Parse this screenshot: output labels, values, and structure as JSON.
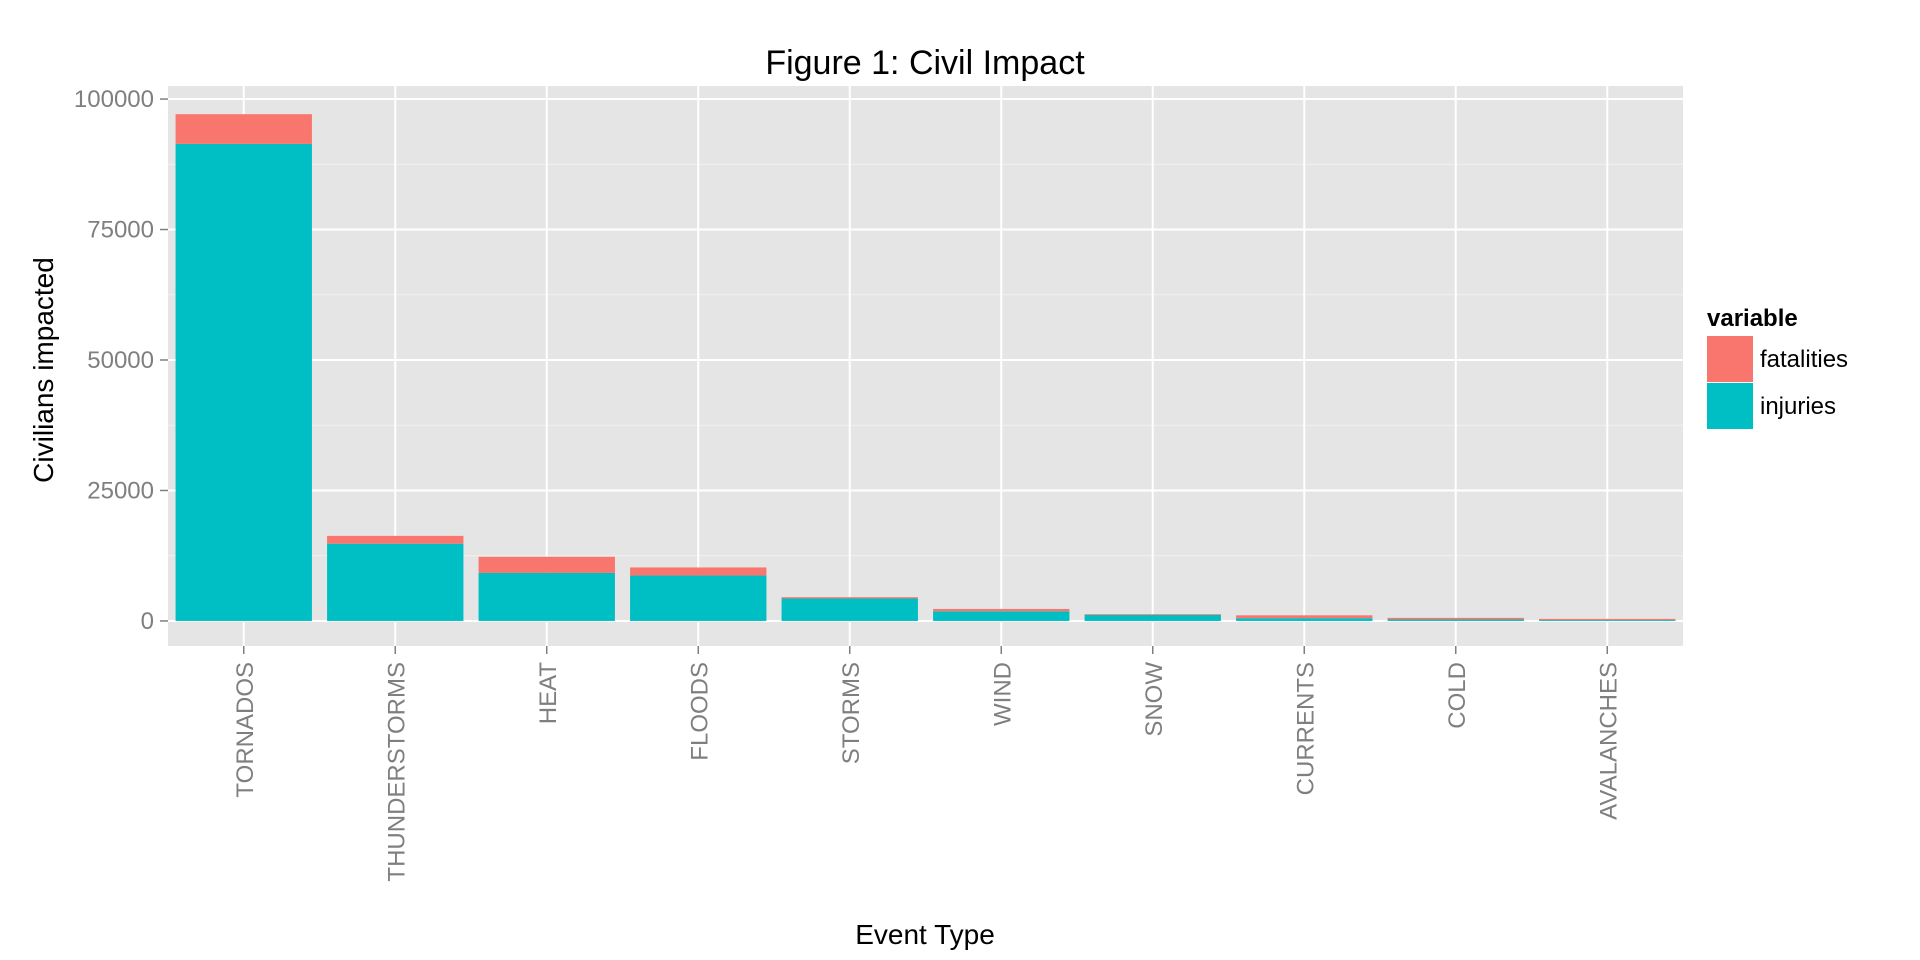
{
  "chart_data": {
    "type": "bar",
    "stacked": true,
    "title": "Figure 1: Civil Impact",
    "xlabel": "Event Type",
    "ylabel": "Civilians impacted",
    "categories": [
      "TORNADOS",
      "THUNDERSTORMS",
      "HEAT",
      "FLOODS",
      "STORMS",
      "WIND",
      "SNOW",
      "CURRENTS",
      "COLD",
      "AVALANCHES"
    ],
    "series": [
      {
        "name": "injuries",
        "color": "#00BFC4",
        "values": [
          91400,
          14800,
          9200,
          8700,
          4300,
          1850,
          1150,
          530,
          280,
          170
        ]
      },
      {
        "name": "fatalities",
        "color": "#F8766D",
        "values": [
          5700,
          1500,
          3100,
          1550,
          250,
          450,
          150,
          550,
          310,
          225
        ]
      }
    ],
    "ylim": [
      -4800,
      102500
    ],
    "yticks": [
      0,
      25000,
      50000,
      75000,
      100000
    ],
    "ytick_labels": [
      "0",
      "25000",
      "50000",
      "75000",
      "100000"
    ],
    "grid": true,
    "legend": {
      "title": "variable",
      "position": "right",
      "entries": [
        {
          "label": "fatalities",
          "color": "#F8766D"
        },
        {
          "label": "injuries",
          "color": "#00BFC4"
        }
      ]
    },
    "panel_background": "#E5E5E5"
  }
}
